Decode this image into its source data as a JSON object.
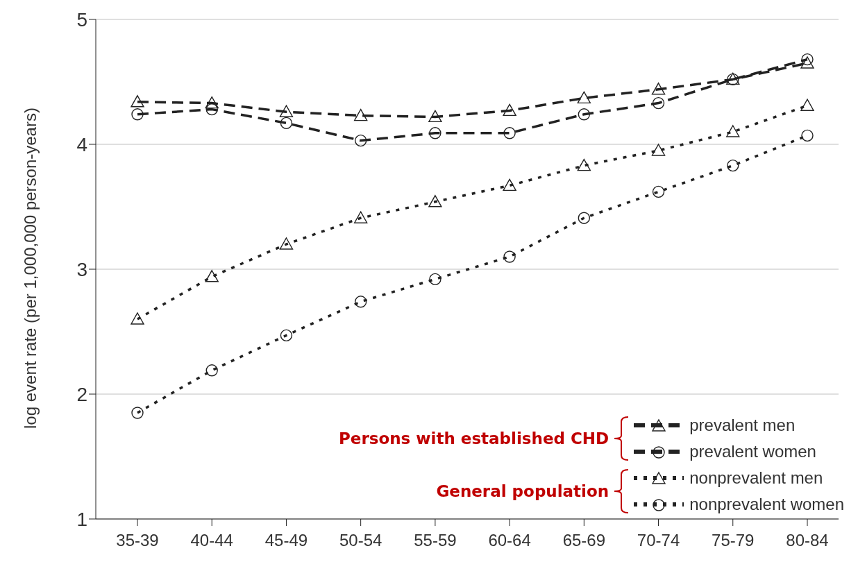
{
  "chart_data": {
    "type": "line",
    "ylabel": "log event rate (per 1,000,000 person-years)",
    "categories": [
      "35-39",
      "40-44",
      "45-49",
      "50-54",
      "55-59",
      "60-64",
      "65-69",
      "70-74",
      "75-79",
      "80-84"
    ],
    "series": [
      {
        "name": "prevalent men",
        "color": "#222222",
        "marker": "triangle",
        "line_style": "dashed",
        "values": [
          4.34,
          4.33,
          4.26,
          4.23,
          4.22,
          4.27,
          4.37,
          4.44,
          4.52,
          4.65
        ]
      },
      {
        "name": "prevalent women",
        "color": "#222222",
        "marker": "circle",
        "line_style": "dashed",
        "values": [
          4.24,
          4.28,
          4.17,
          4.03,
          4.09,
          4.09,
          4.24,
          4.33,
          4.52,
          4.68
        ]
      },
      {
        "name": "nonprevalent men",
        "color": "#222222",
        "marker": "triangle",
        "line_style": "dotted",
        "values": [
          2.6,
          2.94,
          3.2,
          3.41,
          3.54,
          3.67,
          3.83,
          3.95,
          4.1,
          4.31
        ]
      },
      {
        "name": "nonprevalent women",
        "color": "#222222",
        "marker": "circle",
        "line_style": "dotted",
        "values": [
          1.85,
          2.19,
          2.47,
          2.74,
          2.92,
          3.1,
          3.41,
          3.62,
          3.83,
          4.07
        ]
      }
    ],
    "ylim": [
      1,
      5
    ],
    "yticks": [
      1,
      2,
      3,
      4,
      5
    ],
    "grid": "y",
    "legend": "bottom right",
    "annotations": [
      "Persons with established CHD",
      "General population"
    ]
  }
}
